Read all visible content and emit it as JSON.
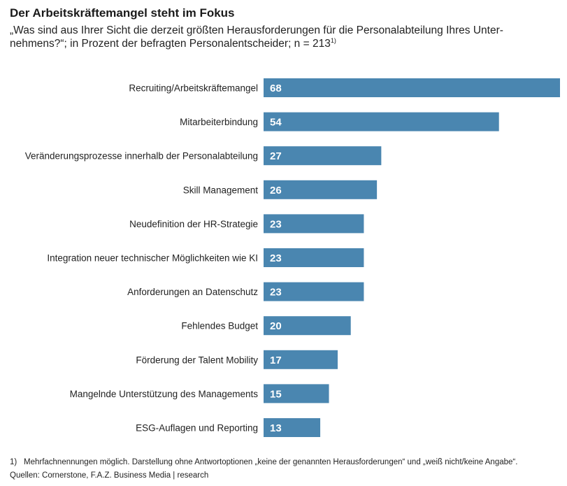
{
  "header": {
    "title": "Der Arbeitskräftemangel steht im Fokus",
    "subtitle": "„Was sind aus Ihrer Sicht die derzeit größten Herausforderungen für die Personalabteilung Ihres Unter­nehmens?“; in Prozent der befragten Personalentscheider; n = 213",
    "subtitle_footnote_mark": "1)"
  },
  "chart_data": {
    "type": "bar",
    "orientation": "horizontal",
    "title": "Der Arbeitskräftemangel steht im Fokus",
    "xlabel": "",
    "ylabel": "",
    "unit": "Prozent",
    "xlim": [
      0,
      68
    ],
    "categories": [
      "Recruiting/Arbeitskräftemangel",
      "Mitarbeiterbindung",
      "Veränderungsprozesse innerhalb der Personalabteilung",
      "Skill Management",
      "Neudefinition der HR-Strategie",
      "Integration neuer technischer Möglichkeiten wie KI",
      "Anforderungen an Datenschutz",
      "Fehlendes Budget",
      "Förderung der Talent Mobility",
      "Mangelnde Unterstützung des Managements",
      "ESG-Auflagen und Reporting"
    ],
    "values": [
      68,
      54,
      27,
      26,
      23,
      23,
      23,
      20,
      17,
      15,
      13
    ],
    "bar_color": "#4a86b0"
  },
  "footer": {
    "footnote_mark": "1)",
    "footnote": "Mehrfachnennungen möglich. Darstellung ohne Antwortoptionen „keine der genannten Herausforderungen“ und „weiß nicht/keine Angabe“.",
    "source": "Quellen: Cornerstone, F.A.Z. Business Media | research"
  }
}
